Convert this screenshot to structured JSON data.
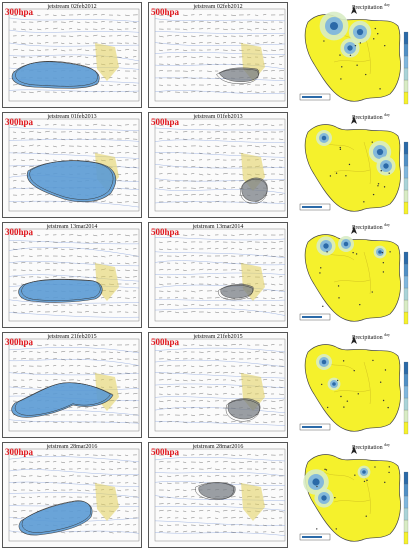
{
  "rows": [
    {
      "title": "jetstream 02feb2012",
      "level_a": "300hpa",
      "level_b": "500hpa",
      "map_title": "Precipitation",
      "map_unit": "day"
    },
    {
      "title": "jetstream 01feb2013",
      "level_a": "300hpa",
      "level_b": "500hpa",
      "map_title": "Precipitation",
      "map_unit": "day"
    },
    {
      "title": "jetstream 13mar2014",
      "level_a": "300hpa",
      "level_b": "500hpa",
      "map_title": "Precipitation",
      "map_unit": "day"
    },
    {
      "title": "jetstream 21feb2015",
      "level_a": "300hpa",
      "level_b": "500hpa",
      "map_title": "Precipitation",
      "map_unit": "day"
    },
    {
      "title": "jetstream 28mar2016",
      "level_a": "300hpa",
      "level_b": "500hpa",
      "map_title": "Precipitation",
      "map_unit": "day"
    }
  ],
  "colors": {
    "jet_fill": "#5b9bd5",
    "contour": "#333333",
    "highlight": "#e2cf5a",
    "wind": "#555555",
    "streamline": "#8da6dd",
    "iran_base": "#f5f12c",
    "precip_dark": "#2b6aa8",
    "precip_mid": "#7fb6dd",
    "precip_light": "#d8ecc4",
    "level_label": "#e0151b"
  }
}
